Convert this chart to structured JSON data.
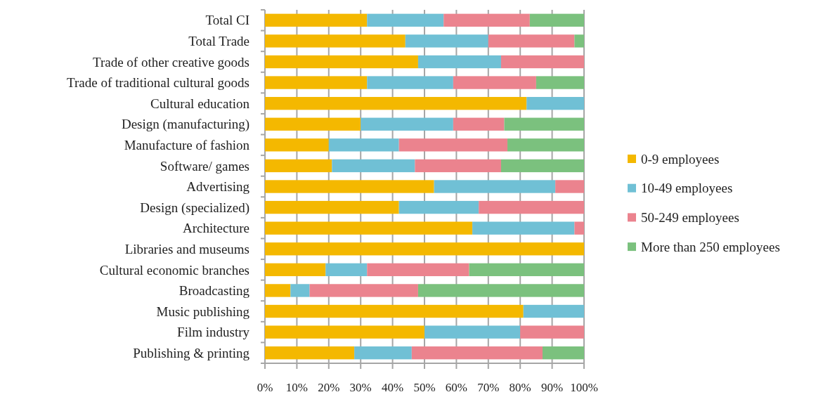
{
  "chart_data": {
    "type": "bar",
    "orientation": "horizontal",
    "stacked": true,
    "categories": [
      "Total CI",
      "Total Trade",
      "Trade of other creative goods",
      "Trade of traditional cultural goods",
      "Cultural education",
      "Design (manufacturing)",
      "Manufacture of fashion",
      "Software/ games",
      "Advertising",
      "Design (specialized)",
      "Architecture",
      "Libraries and museums",
      "Cultural economic branches",
      "Broadcasting",
      "Music publishing",
      "Film industry",
      "Publishing & printing"
    ],
    "series": [
      {
        "name": "0-9 employees",
        "color": "#f4b800",
        "values": [
          32,
          44,
          48,
          32,
          82,
          30,
          20,
          21,
          53,
          42,
          65,
          100,
          19,
          8,
          81,
          50,
          28
        ]
      },
      {
        "name": "10-49 employees",
        "color": "#70c0d5",
        "values": [
          24,
          26,
          26,
          27,
          18,
          29,
          22,
          26,
          38,
          25,
          32,
          0,
          13,
          6,
          19,
          30,
          18
        ]
      },
      {
        "name": "50-249 employees",
        "color": "#eb838e",
        "values": [
          27,
          27,
          26,
          26,
          0,
          16,
          34,
          27,
          9,
          33,
          3,
          0,
          32,
          34,
          0,
          20,
          41
        ]
      },
      {
        "name": "More than 250 employees",
        "color": "#7bc17e",
        "values": [
          17,
          3,
          0,
          15,
          0,
          25,
          24,
          26,
          0,
          0,
          0,
          0,
          36,
          52,
          0,
          0,
          13
        ]
      }
    ],
    "xlim": [
      0,
      100
    ],
    "xticks": [
      {
        "value": 0,
        "label": "0%"
      },
      {
        "value": 10,
        "label": "10%"
      },
      {
        "value": 20,
        "label": "20%"
      },
      {
        "value": 30,
        "label": "30%"
      },
      {
        "value": 40,
        "label": "40%"
      },
      {
        "value": 50,
        "label": "50%"
      },
      {
        "value": 60,
        "label": "60%"
      },
      {
        "value": 70,
        "label": "70%"
      },
      {
        "value": 80,
        "label": "80%"
      },
      {
        "value": 90,
        "label": "90%"
      },
      {
        "value": 100,
        "label": "100%"
      }
    ],
    "grid": "x",
    "legend": "right"
  }
}
